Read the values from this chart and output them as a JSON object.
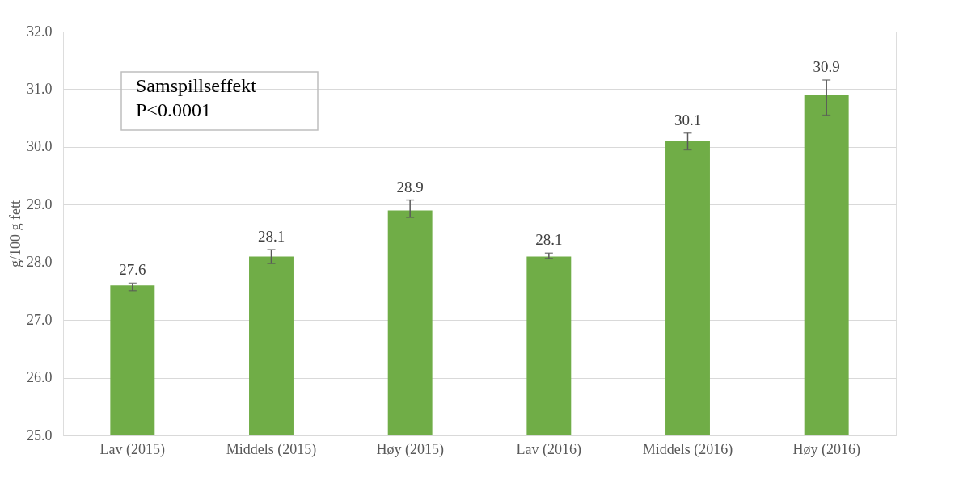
{
  "chart_data": {
    "type": "bar",
    "ylabel": "g/100 g fett",
    "categories": [
      "Lav (2015)",
      "Middels (2015)",
      "Høy (2015)",
      "Lav (2016)",
      "Middels (2016)",
      "Høy (2016)"
    ],
    "values": [
      27.6,
      28.1,
      28.9,
      28.1,
      30.1,
      30.9
    ],
    "color": "#70ad47",
    "errors": [
      [
        27.51,
        27.64
      ],
      [
        27.98,
        28.22
      ],
      [
        28.78,
        29.08
      ],
      [
        28.07,
        28.16
      ],
      [
        29.95,
        30.24
      ],
      [
        30.55,
        31.16
      ]
    ],
    "data_labels": true,
    "annotations": [
      "Samspillseffekt\nP<0.0001"
    ],
    "ylim": [
      25,
      32
    ],
    "yticks": [
      {
        "value": 25,
        "label": "25.0"
      },
      {
        "value": 26,
        "label": "26.0"
      },
      {
        "value": 27,
        "label": "27.0"
      },
      {
        "value": 28,
        "label": "28.0"
      },
      {
        "value": 29,
        "label": "29.0"
      },
      {
        "value": 30,
        "label": "30.0"
      },
      {
        "value": 31,
        "label": "31.0"
      },
      {
        "value": 32,
        "label": "32.0"
      }
    ],
    "grid": "y"
  }
}
